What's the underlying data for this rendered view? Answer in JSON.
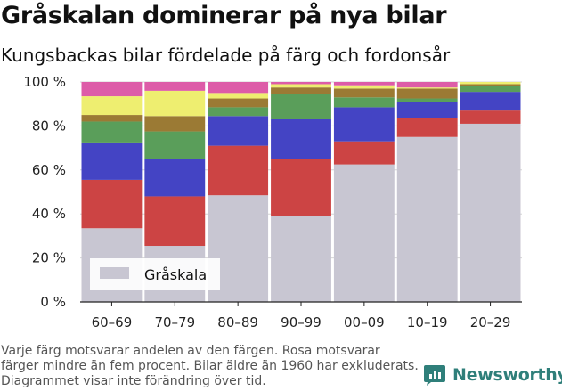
{
  "title": "Gråskalan dominerar på nya bilar",
  "subtitle": "Kungsbackas bilar fördelade på färg och fordonsår",
  "footnote": "Varje färg motsvarar andelen av den färgen. Rosa motsvarar färger mindre än fem procent. Bilar äldre än 1960 har exkluderats. Diagrammet visar inte förändring över tid.",
  "brand": {
    "name": "Newsworthy",
    "color": "#2f7f7a",
    "icon": "newsworthy-logo-icon"
  },
  "chart_data": {
    "type": "bar",
    "stacked": true,
    "normalized": true,
    "categories": [
      "60–69",
      "70–79",
      "80–89",
      "90–99",
      "00–09",
      "10–19",
      "20–29"
    ],
    "ylim": [
      0,
      100
    ],
    "yticks": [
      0,
      20,
      40,
      60,
      80,
      100
    ],
    "ytick_labels": [
      "0 %",
      "20 %",
      "40 %",
      "60 %",
      "80 %",
      "100 %"
    ],
    "grid": true,
    "legend": {
      "placement": "bottom-left",
      "entries": [
        "Gråskala"
      ]
    },
    "series": [
      {
        "name": "Gråskala",
        "color": "#c8c6d2",
        "values": [
          33.5,
          25.5,
          48.5,
          39,
          62.5,
          75,
          81
        ]
      },
      {
        "color": "#cc4444",
        "values": [
          22,
          22.5,
          22.5,
          26,
          10.5,
          8.5,
          6
        ]
      },
      {
        "color": "#4444c4",
        "values": [
          17,
          17,
          13.5,
          18,
          15.5,
          7.5,
          8.5
        ]
      },
      {
        "color": "#5a9e5a",
        "values": [
          9.5,
          12.5,
          4,
          11.5,
          4.5,
          1.5,
          2.5
        ]
      },
      {
        "color": "#9b7a34",
        "values": [
          3,
          7,
          4,
          3,
          4,
          4.5,
          1
        ]
      },
      {
        "color": "#eeee70",
        "values": [
          8.5,
          11.5,
          2.5,
          1.5,
          1.5,
          0.5,
          1
        ]
      },
      {
        "color": "#dd5ca8",
        "values": [
          6.5,
          4,
          5,
          1,
          1.5,
          2.5,
          0
        ]
      }
    ]
  }
}
